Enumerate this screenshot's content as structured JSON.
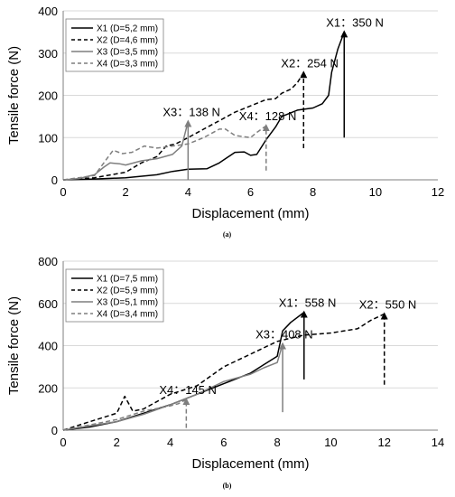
{
  "chart_data": [
    {
      "panel_label": "(a)",
      "type": "line",
      "xlabel": "Displacement (mm)",
      "ylabel": "Tensile force (N)",
      "xlim": [
        0,
        12
      ],
      "ylim": [
        0,
        400
      ],
      "xticks": [
        "0",
        "2",
        "4",
        "6",
        "8",
        "10",
        "12"
      ],
      "yticks": [
        "0",
        "100",
        "200",
        "300",
        "400"
      ],
      "grid": "horizontal",
      "legend_position": "top-left",
      "series": [
        {
          "name": "X1 (D=5,2 mm)",
          "color": "#000000",
          "style": "solid",
          "x": [
            0,
            1,
            2,
            3,
            3.5,
            4,
            4.6,
            5,
            5.3,
            5.5,
            5.8,
            6.0,
            6.2,
            6.5,
            6.8,
            7.0,
            7.5,
            8.0,
            8.3,
            8.5,
            8.6,
            8.8,
            9.0
          ],
          "y": [
            0,
            2,
            5,
            12,
            20,
            25,
            26,
            40,
            55,
            65,
            66,
            58,
            60,
            95,
            125,
            150,
            165,
            170,
            180,
            200,
            255,
            310,
            350
          ]
        },
        {
          "name": "X2 (D=4,6 mm)",
          "color": "#000000",
          "style": "dashed",
          "x": [
            0,
            1,
            2,
            2.5,
            3.0,
            3.3,
            3.6,
            4.0,
            4.5,
            5.0,
            5.5,
            6.0,
            6.5,
            6.8,
            7.0,
            7.3,
            7.5,
            7.7
          ],
          "y": [
            0,
            5,
            18,
            40,
            55,
            80,
            85,
            100,
            120,
            140,
            160,
            175,
            190,
            192,
            205,
            215,
            230,
            254
          ]
        },
        {
          "name": "X3 (D=3,5 mm)",
          "color": "#7f7f7f",
          "style": "solid",
          "x": [
            0,
            0.5,
            1.0,
            1.3,
            1.5,
            1.8,
            2.0,
            2.5,
            3.0,
            3.5,
            3.8,
            4.0
          ],
          "y": [
            0,
            3,
            12,
            30,
            40,
            38,
            35,
            45,
            50,
            60,
            80,
            138
          ]
        },
        {
          "name": "X4 (D=3,3 mm)",
          "color": "#7f7f7f",
          "style": "dashed",
          "x": [
            0,
            0.5,
            1.0,
            1.3,
            1.6,
            1.9,
            2.2,
            2.6,
            3.0,
            3.5,
            4.0,
            4.5,
            5.0,
            5.2,
            5.5,
            6.0,
            6.2,
            6.5
          ],
          "y": [
            0,
            5,
            10,
            40,
            70,
            62,
            65,
            80,
            75,
            80,
            85,
            100,
            120,
            120,
            105,
            100,
            112,
            128
          ]
        }
      ],
      "annotations": [
        {
          "text": "X1：350 N",
          "x": 9.0,
          "y": 350,
          "color": "#000000",
          "style": "solid",
          "y_drop": 100
        },
        {
          "text": "X2：254 N",
          "x": 7.7,
          "y": 254,
          "color": "#000000",
          "style": "dashed",
          "y_drop": 75
        },
        {
          "text": "X3：138 N",
          "x": 4.0,
          "y": 138,
          "color": "#7f7f7f",
          "style": "solid",
          "y_drop": 0
        },
        {
          "text": "X4：128 N",
          "x": 6.5,
          "y": 128,
          "color": "#7f7f7f",
          "style": "dashed",
          "y_drop": 22
        }
      ]
    },
    {
      "panel_label": "(b)",
      "type": "line",
      "xlabel": "Displacement (mm)",
      "ylabel": "Tensile force (N)",
      "xlim": [
        0,
        14
      ],
      "ylim": [
        0,
        800
      ],
      "xticks": [
        "0",
        "2",
        "4",
        "6",
        "8",
        "10",
        "12",
        "14"
      ],
      "yticks": [
        "0",
        "200",
        "400",
        "600",
        "800"
      ],
      "grid": "horizontal",
      "legend_position": "top-left",
      "series": [
        {
          "name": "X1 (D=7,5 mm)",
          "color": "#000000",
          "style": "solid",
          "x": [
            0,
            1,
            2,
            3,
            4,
            5,
            6,
            7,
            7.5,
            8.0,
            8.2,
            8.5,
            9.0
          ],
          "y": [
            0,
            15,
            40,
            80,
            120,
            170,
            220,
            270,
            310,
            350,
            470,
            510,
            558
          ]
        },
        {
          "name": "X2 (D=5,9 mm)",
          "color": "#000000",
          "style": "dashed",
          "x": [
            0,
            1,
            2.0,
            2.3,
            2.6,
            3.0,
            4.0,
            5.0,
            6.0,
            7.0,
            8.0,
            9.0,
            10.0,
            11.0,
            11.5,
            12.0
          ],
          "y": [
            0,
            40,
            80,
            160,
            90,
            100,
            170,
            210,
            300,
            360,
            420,
            450,
            460,
            480,
            520,
            550
          ]
        },
        {
          "name": "X3 (D=5,1 mm)",
          "color": "#7f7f7f",
          "style": "solid",
          "x": [
            0,
            1,
            2,
            3,
            4,
            5,
            5.5,
            6,
            7,
            7.5,
            8.0,
            8.2
          ],
          "y": [
            0,
            20,
            40,
            75,
            120,
            170,
            200,
            230,
            265,
            295,
            320,
            408
          ]
        },
        {
          "name": "X4 (D=3,4 mm)",
          "color": "#7f7f7f",
          "style": "dashed",
          "x": [
            0,
            1,
            2,
            3,
            4,
            4.3,
            4.6
          ],
          "y": [
            0,
            25,
            50,
            90,
            115,
            125,
            145
          ]
        }
      ],
      "annotations": [
        {
          "text": "X1：558 N",
          "x": 9.0,
          "y": 558,
          "color": "#000000",
          "style": "solid",
          "y_drop": 240
        },
        {
          "text": "X2：550 N",
          "x": 12.0,
          "y": 550,
          "color": "#000000",
          "style": "dashed",
          "y_drop": 215
        },
        {
          "text": "X3：408 N",
          "x": 8.2,
          "y": 408,
          "color": "#7f7f7f",
          "style": "solid",
          "y_drop": 85
        },
        {
          "text": "X4：145 N",
          "x": 4.6,
          "y": 145,
          "color": "#7f7f7f",
          "style": "dashed",
          "y_drop": 10
        }
      ]
    }
  ]
}
